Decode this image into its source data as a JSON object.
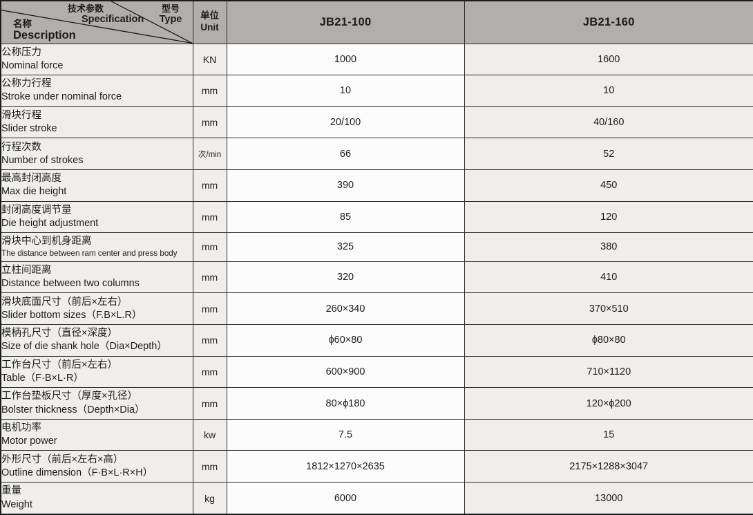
{
  "colors": {
    "header-bg": "#b1afad",
    "cell-light": "#efeeec",
    "cell-white": "#fcfcfc",
    "border": "#2b2b2b",
    "border-heavy": "#1c1c1c",
    "text": "#1c1c1c"
  },
  "header": {
    "corner": {
      "spec_zh": "技术参数",
      "spec_en": "Specification",
      "type_zh": "型号",
      "type_en": "Type",
      "desc_zh": "名称",
      "desc_en": "Description"
    },
    "unit_zh": "单位",
    "unit_en": "Unit",
    "models": [
      "JB21-100",
      "JB21-160"
    ]
  },
  "rows": [
    {
      "zh": "公称压力",
      "en": "Nominal force",
      "unit": "KN",
      "values": [
        "1000",
        "1600"
      ]
    },
    {
      "zh": "公称力行程",
      "en": "Stroke under nominal force",
      "unit": "mm",
      "values": [
        "10",
        "10"
      ]
    },
    {
      "zh": "滑块行程",
      "en": "Slider stroke",
      "unit": "mm",
      "values": [
        "20/100",
        "40/160"
      ]
    },
    {
      "zh": "行程次数",
      "en": "Number of strokes",
      "unit": "次/min",
      "unit_small": true,
      "values": [
        "66",
        "52"
      ]
    },
    {
      "zh": "最高封闭高度",
      "en": "Max die height",
      "unit": "mm",
      "values": [
        "390",
        "450"
      ]
    },
    {
      "zh": "封闭高度调节量",
      "en": "Die height adjustment",
      "unit": "mm",
      "values": [
        "85",
        "120"
      ]
    },
    {
      "zh": "滑块中心到机身距离",
      "en": "The distance between ram center and press body",
      "en_small": true,
      "unit": "mm",
      "values": [
        "325",
        "380"
      ]
    },
    {
      "zh": "立柱间距离",
      "en": "Distance between two columns",
      "unit": "mm",
      "values": [
        "320",
        "410"
      ]
    },
    {
      "zh": "滑块底面尺寸（前后×左右）",
      "en": "Slider bottom sizes（F.B×L.R）",
      "unit": "mm",
      "values": [
        "260×340",
        "370×510"
      ]
    },
    {
      "zh": "模柄孔尺寸（直径×深度）",
      "en": "Size of die shank hole（Dia×Depth）",
      "unit": "mm",
      "values": [
        "ϕ60×80",
        "ϕ80×80"
      ]
    },
    {
      "zh": "工作台尺寸（前后×左右）",
      "en": "Table（F·B×L·R）",
      "unit": "mm",
      "values": [
        "600×900",
        "710×1120"
      ]
    },
    {
      "zh": "工作台垫板尺寸（厚度×孔径）",
      "en": "Bolster thickness（Depth×Dia）",
      "unit": "mm",
      "values": [
        "80×ϕ180",
        "120×ϕ200"
      ]
    },
    {
      "zh": "电机功率",
      "en": "Motor power",
      "unit": "kw",
      "values": [
        "7.5",
        "15"
      ]
    },
    {
      "zh": "外形尺寸（前后×左右×高）",
      "en": "Outline dimension（F·B×L·R×H）",
      "unit": "mm",
      "values": [
        "1812×1270×2635",
        "2175×1288×3047"
      ]
    },
    {
      "zh": "重量",
      "en": "Weight",
      "unit": "kg",
      "values": [
        "6000",
        "13000"
      ]
    }
  ]
}
